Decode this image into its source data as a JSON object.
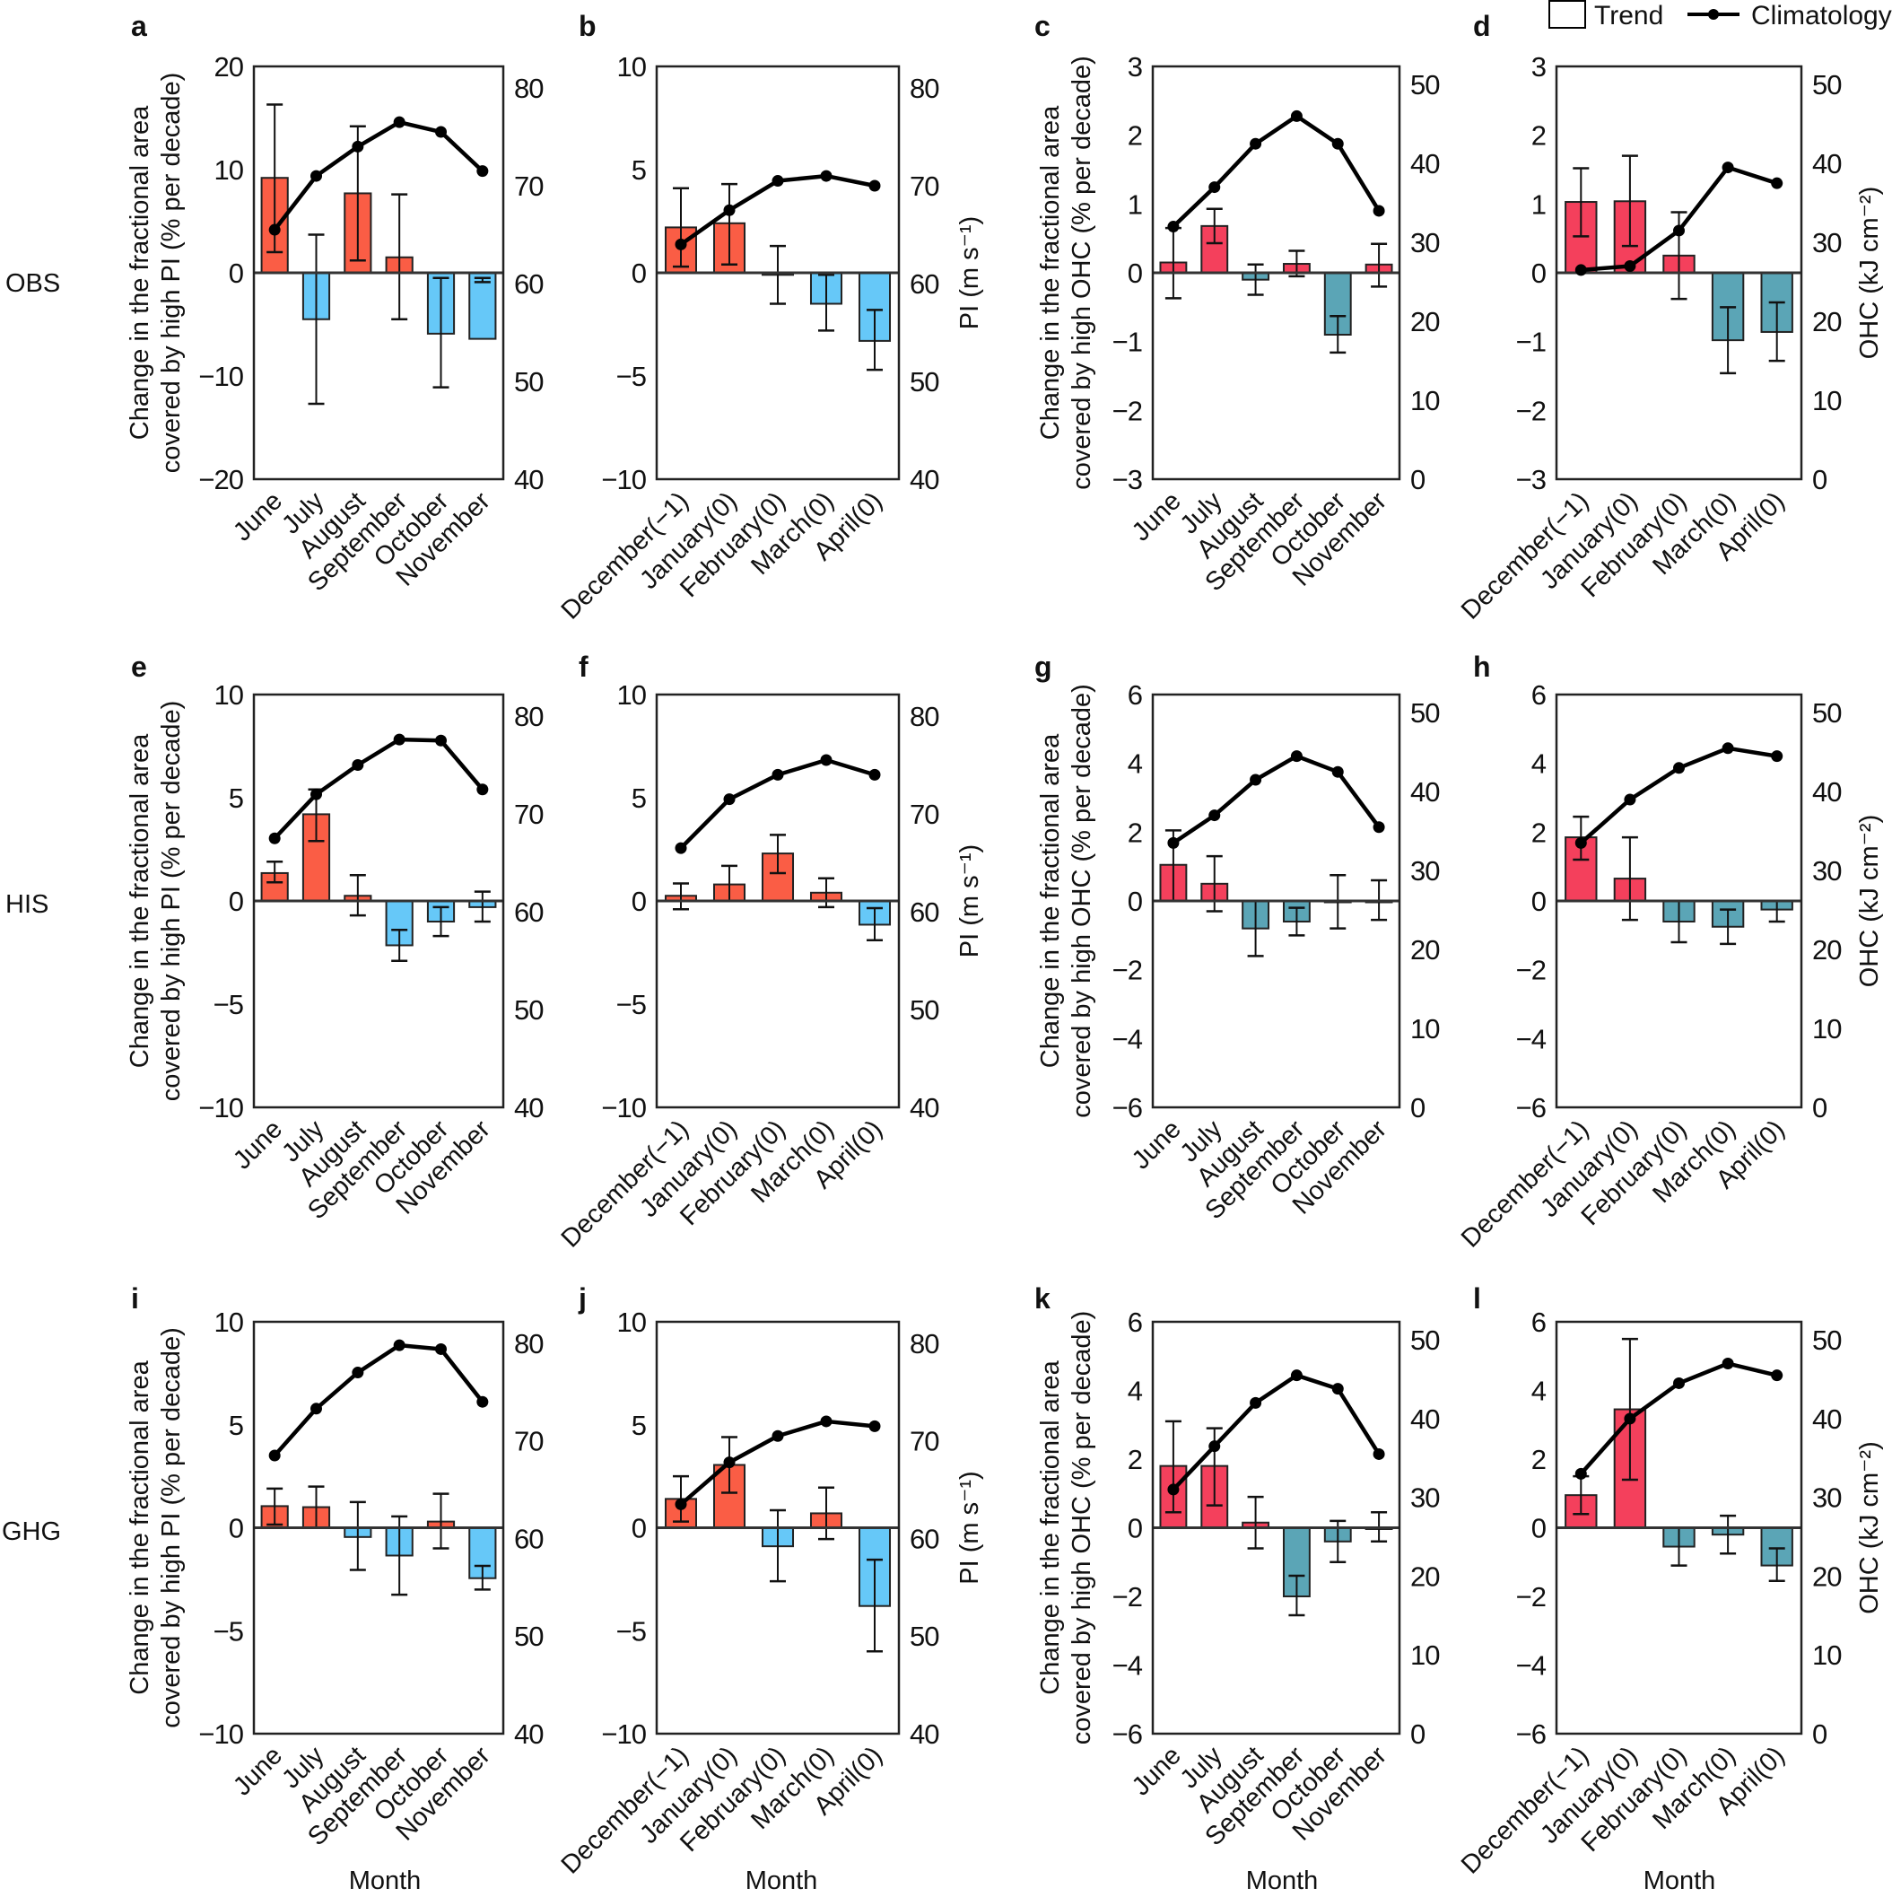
{
  "legend": {
    "trend_label": "Trend",
    "climatology_label": "Climatology"
  },
  "row_labels": [
    "OBS",
    "HIS",
    "GHG"
  ],
  "colors": {
    "pi_positive": "#fa5d45",
    "pi_negative": "#66c8f8",
    "ohc_positive": "#f4405c",
    "ohc_negative": "#5ba5b6",
    "climatology": "#000000"
  },
  "chart_data": [
    {
      "letter": "a",
      "type": "bar+line",
      "categories": [
        "June",
        "July",
        "August",
        "September",
        "October",
        "November"
      ],
      "trend": [
        9.2,
        -4.5,
        7.7,
        1.5,
        -5.9,
        -6.4
      ],
      "err_low": [
        2,
        -12.7,
        1.2,
        -4.5,
        -11.1,
        -0.5
      ],
      "err_high": [
        16.3,
        3.7,
        14.2,
        7.6,
        -0.5,
        -0.9
      ],
      "climatology": [
        65.5,
        71,
        74,
        76.5,
        75.5,
        71.5
      ],
      "variable": "PI",
      "ylim": [
        -20,
        20
      ],
      "yticks": [
        "−20",
        "−10",
        "0",
        "10",
        "20"
      ],
      "yticks_values": [
        -20,
        -10,
        0,
        10,
        20
      ],
      "y2lim": [
        40,
        82.2
      ],
      "y2ticks": [
        "40",
        "50",
        "60",
        "70",
        "80"
      ],
      "y2ticks_values": [
        40,
        50,
        60,
        70,
        80
      ],
      "ylabel": [
        "Change in the fractional area",
        "covered by high PI (% per decade)"
      ],
      "y2label": "",
      "xlabel": ""
    },
    {
      "letter": "b",
      "type": "bar+line",
      "categories": [
        "December(−1)",
        "January(0)",
        "February(0)",
        "March(0)",
        "April(0)"
      ],
      "trend": [
        2.2,
        2.4,
        -0.1,
        -1.5,
        -3.3
      ],
      "err_low": [
        0.3,
        0.4,
        -1.5,
        -2.8,
        -4.7
      ],
      "err_high": [
        4.1,
        4.3,
        1.3,
        -0.1,
        -1.8
      ],
      "climatology": [
        64,
        67.5,
        70.5,
        71,
        70
      ],
      "variable": "PI",
      "ylim": [
        -10,
        10
      ],
      "yticks": [
        "−10",
        "−5",
        "0",
        "5",
        "10"
      ],
      "yticks_values": [
        -10,
        -5,
        0,
        5,
        10
      ],
      "y2lim": [
        40,
        82.2
      ],
      "y2ticks": [
        "40",
        "50",
        "60",
        "70",
        "80"
      ],
      "y2ticks_values": [
        40,
        50,
        60,
        70,
        80
      ],
      "ylabel": [],
      "y2label": "PI (m s⁻¹)",
      "xlabel": ""
    },
    {
      "letter": "c",
      "type": "bar+line",
      "categories": [
        "June",
        "July",
        "August",
        "September",
        "October",
        "November"
      ],
      "trend": [
        0.15,
        0.68,
        -0.1,
        0.13,
        -0.9,
        0.12
      ],
      "err_low": [
        -0.37,
        0.43,
        -0.32,
        -0.05,
        -1.16,
        -0.2
      ],
      "err_high": [
        0.65,
        0.93,
        0.12,
        0.32,
        -0.63,
        0.42
      ],
      "climatology": [
        32,
        37,
        42.5,
        46,
        42.5,
        34
      ],
      "variable": "OHC",
      "ylim": [
        -3,
        3
      ],
      "yticks": [
        "−3",
        "−2",
        "−1",
        "0",
        "1",
        "2",
        "3"
      ],
      "yticks_values": [
        -3,
        -2,
        -1,
        0,
        1,
        2,
        3
      ],
      "y2lim": [
        0,
        52.3
      ],
      "y2ticks": [
        "0",
        "10",
        "20",
        "30",
        "40",
        "50"
      ],
      "y2ticks_values": [
        0,
        10,
        20,
        30,
        40,
        50
      ],
      "ylabel": [
        "Change in the fractional area",
        "covered by high OHC (% per decade)"
      ],
      "y2label": "",
      "xlabel": ""
    },
    {
      "letter": "d",
      "type": "bar+line",
      "categories": [
        "December(−1)",
        "January(0)",
        "February(0)",
        "March(0)",
        "April(0)"
      ],
      "trend": [
        1.03,
        1.04,
        0.25,
        -0.98,
        -0.86
      ],
      "err_low": [
        0.53,
        0.39,
        -0.38,
        -1.46,
        -1.28
      ],
      "err_high": [
        1.52,
        1.7,
        0.88,
        -0.5,
        -0.43
      ],
      "climatology": [
        26.5,
        27,
        31.5,
        39.5,
        37.5
      ],
      "variable": "OHC",
      "ylim": [
        -3,
        3
      ],
      "yticks": [
        "−3",
        "−2",
        "−1",
        "0",
        "1",
        "2",
        "3"
      ],
      "yticks_values": [
        -3,
        -2,
        -1,
        0,
        1,
        2,
        3
      ],
      "y2lim": [
        0,
        52.3
      ],
      "y2ticks": [
        "0",
        "10",
        "20",
        "30",
        "40",
        "50"
      ],
      "y2ticks_values": [
        0,
        10,
        20,
        30,
        40,
        50
      ],
      "ylabel": [],
      "y2label": "OHC (kJ cm⁻²)",
      "xlabel": ""
    },
    {
      "letter": "e",
      "type": "bar+line",
      "categories": [
        "June",
        "July",
        "August",
        "September",
        "October",
        "November"
      ],
      "trend": [
        1.35,
        4.2,
        0.25,
        -2.15,
        -1.0,
        -0.3
      ],
      "err_low": [
        0.9,
        2.9,
        -0.7,
        -2.9,
        -1.7,
        -1.0
      ],
      "err_high": [
        1.9,
        5.4,
        1.25,
        -1.4,
        -0.3,
        0.45
      ],
      "climatology": [
        67.5,
        72,
        75,
        77.6,
        77.5,
        72.5
      ],
      "variable": "PI",
      "ylim": [
        -10,
        10
      ],
      "yticks": [
        "−10",
        "−5",
        "0",
        "5",
        "10"
      ],
      "yticks_values": [
        -10,
        -5,
        0,
        5,
        10
      ],
      "y2lim": [
        40,
        82.2
      ],
      "y2ticks": [
        "40",
        "50",
        "60",
        "70",
        "80"
      ],
      "y2ticks_values": [
        40,
        50,
        60,
        70,
        80
      ],
      "ylabel": [
        "Change in the fractional area",
        "covered by high PI (% per decade)"
      ],
      "y2label": "",
      "xlabel": ""
    },
    {
      "letter": "f",
      "type": "bar+line",
      "categories": [
        "December(−1)",
        "January(0)",
        "February(0)",
        "March(0)",
        "April(0)"
      ],
      "trend": [
        0.25,
        0.8,
        2.3,
        0.4,
        -1.15
      ],
      "err_low": [
        -0.4,
        0,
        1.35,
        -0.3,
        -1.9
      ],
      "err_high": [
        0.85,
        1.7,
        3.2,
        1.1,
        -0.35
      ],
      "climatology": [
        66.5,
        71.5,
        74,
        75.5,
        74
      ],
      "variable": "PI",
      "ylim": [
        -10,
        10
      ],
      "yticks": [
        "−10",
        "−5",
        "0",
        "5",
        "10"
      ],
      "yticks_values": [
        -10,
        -5,
        0,
        5,
        10
      ],
      "y2lim": [
        40,
        82.2
      ],
      "y2ticks": [
        "40",
        "50",
        "60",
        "70",
        "80"
      ],
      "y2ticks_values": [
        40,
        50,
        60,
        70,
        80
      ],
      "ylabel": [],
      "y2label": "PI (m s⁻¹)",
      "xlabel": ""
    },
    {
      "letter": "g",
      "type": "bar+line",
      "categories": [
        "June",
        "July",
        "August",
        "September",
        "October",
        "November"
      ],
      "trend": [
        1.05,
        0.5,
        -0.8,
        -0.6,
        0,
        0
      ],
      "err_low": [
        0,
        -0.3,
        -1.6,
        -1.0,
        -0.8,
        -0.55
      ],
      "err_high": [
        2.05,
        1.3,
        0,
        -0.2,
        0.75,
        0.6
      ],
      "climatology": [
        33.5,
        37,
        41.5,
        44.5,
        42.5,
        35.5
      ],
      "variable": "OHC",
      "ylim": [
        -6,
        6
      ],
      "yticks": [
        "−6",
        "−4",
        "−2",
        "0",
        "2",
        "4",
        "6"
      ],
      "yticks_values": [
        -6,
        -4,
        -2,
        0,
        2,
        4,
        6
      ],
      "y2lim": [
        0,
        52.3
      ],
      "y2ticks": [
        "0",
        "10",
        "20",
        "30",
        "40",
        "50"
      ],
      "y2ticks_values": [
        0,
        10,
        20,
        30,
        40,
        50
      ],
      "ylabel": [
        "Change in the fractional area",
        "covered by high OHC (% per decade)"
      ],
      "y2label": "",
      "xlabel": ""
    },
    {
      "letter": "h",
      "type": "bar+line",
      "categories": [
        "December(−1)",
        "January(0)",
        "February(0)",
        "March(0)",
        "April(0)"
      ],
      "trend": [
        1.85,
        0.65,
        -0.6,
        -0.75,
        -0.25
      ],
      "err_low": [
        1.2,
        -0.55,
        -1.2,
        -1.25,
        -0.6
      ],
      "err_high": [
        2.45,
        1.85,
        0,
        -0.25,
        0
      ],
      "climatology": [
        33.5,
        39,
        43,
        45.5,
        44.5
      ],
      "variable": "OHC",
      "ylim": [
        -6,
        6
      ],
      "yticks": [
        "−6",
        "−4",
        "−2",
        "0",
        "2",
        "4",
        "6"
      ],
      "yticks_values": [
        -6,
        -4,
        -2,
        0,
        2,
        4,
        6
      ],
      "y2lim": [
        0,
        52.3
      ],
      "y2ticks": [
        "0",
        "10",
        "20",
        "30",
        "40",
        "50"
      ],
      "y2ticks_values": [
        0,
        10,
        20,
        30,
        40,
        50
      ],
      "ylabel": [],
      "y2label": "OHC (kJ cm⁻²)",
      "xlabel": ""
    },
    {
      "letter": "i",
      "type": "bar+line",
      "categories": [
        "June",
        "July",
        "August",
        "September",
        "October",
        "November"
      ],
      "trend": [
        1.05,
        1.0,
        -0.45,
        -1.35,
        0.3,
        -2.45
      ],
      "err_low": [
        0.15,
        0,
        -2.05,
        -3.25,
        -1.0,
        -3.0
      ],
      "err_high": [
        1.9,
        2.0,
        1.25,
        0.55,
        1.65,
        -1.85
      ],
      "climatology": [
        68.5,
        73.3,
        77,
        79.8,
        79.4,
        74
      ],
      "variable": "PI",
      "ylim": [
        -10,
        10
      ],
      "yticks": [
        "−10",
        "−5",
        "0",
        "5",
        "10"
      ],
      "yticks_values": [
        -10,
        -5,
        0,
        5,
        10
      ],
      "y2lim": [
        40,
        82.2
      ],
      "y2ticks": [
        "40",
        "50",
        "60",
        "70",
        "80"
      ],
      "y2ticks_values": [
        40,
        50,
        60,
        70,
        80
      ],
      "ylabel": [
        "Change in the fractional area",
        "covered by high PI (% per decade)"
      ],
      "y2label": "",
      "xlabel": "Month"
    },
    {
      "letter": "j",
      "type": "bar+line",
      "categories": [
        "December(−1)",
        "January(0)",
        "February(0)",
        "March(0)",
        "April(0)"
      ],
      "trend": [
        1.4,
        3.05,
        -0.9,
        0.7,
        -3.8
      ],
      "err_low": [
        0.3,
        1.7,
        -2.6,
        -0.55,
        -6.0
      ],
      "err_high": [
        2.5,
        4.4,
        0.85,
        1.95,
        -1.55
      ],
      "climatology": [
        63.5,
        67.8,
        70.5,
        72,
        71.5
      ],
      "variable": "PI",
      "ylim": [
        -10,
        10
      ],
      "yticks": [
        "−10",
        "−5",
        "0",
        "5",
        "10"
      ],
      "yticks_values": [
        -10,
        -5,
        0,
        5,
        10
      ],
      "y2lim": [
        40,
        82.2
      ],
      "y2ticks": [
        "40",
        "50",
        "60",
        "70",
        "80"
      ],
      "y2ticks_values": [
        40,
        50,
        60,
        70,
        80
      ],
      "ylabel": [],
      "y2label": "PI (m s⁻¹)",
      "xlabel": "Month"
    },
    {
      "letter": "k",
      "type": "bar+line",
      "categories": [
        "June",
        "July",
        "August",
        "September",
        "October",
        "November"
      ],
      "trend": [
        1.8,
        1.8,
        0.15,
        -2.0,
        -0.4,
        0
      ],
      "err_low": [
        0.45,
        0.65,
        -0.6,
        -2.55,
        -1.0,
        -0.4
      ],
      "err_high": [
        3.1,
        2.9,
        0.9,
        -1.4,
        0.2,
        0.45
      ],
      "climatology": [
        31,
        36.5,
        42,
        45.5,
        43.8,
        35.5
      ],
      "variable": "OHC",
      "ylim": [
        -6,
        6
      ],
      "yticks": [
        "−6",
        "−4",
        "−2",
        "0",
        "2",
        "4",
        "6"
      ],
      "yticks_values": [
        -6,
        -4,
        -2,
        0,
        2,
        4,
        6
      ],
      "y2lim": [
        0,
        52.3
      ],
      "y2ticks": [
        "0",
        "10",
        "20",
        "30",
        "40",
        "50"
      ],
      "y2ticks_values": [
        0,
        10,
        20,
        30,
        40,
        50
      ],
      "ylabel": [
        "Change in the fractional area",
        "covered by high OHC (% per decade)"
      ],
      "y2label": "",
      "xlabel": "Month"
    },
    {
      "letter": "l",
      "type": "bar+line",
      "categories": [
        "December(−1)",
        "January(0)",
        "February(0)",
        "March(0)",
        "April(0)"
      ],
      "trend": [
        0.95,
        3.45,
        -0.55,
        -0.2,
        -1.1
      ],
      "err_low": [
        0.4,
        1.4,
        -1.1,
        -0.75,
        -1.55
      ],
      "err_high": [
        1.5,
        5.5,
        0,
        0.35,
        -0.6
      ],
      "climatology": [
        33,
        40,
        44.5,
        47,
        45.5
      ],
      "variable": "OHC",
      "ylim": [
        -6,
        6
      ],
      "yticks": [
        "−6",
        "−4",
        "−2",
        "0",
        "2",
        "4",
        "6"
      ],
      "yticks_values": [
        -6,
        -4,
        -2,
        0,
        2,
        4,
        6
      ],
      "y2lim": [
        0,
        52.3
      ],
      "y2ticks": [
        "0",
        "10",
        "20",
        "30",
        "40",
        "50"
      ],
      "y2ticks_values": [
        0,
        10,
        20,
        30,
        40,
        50
      ],
      "ylabel": [],
      "y2label": "OHC (kJ cm⁻²)",
      "xlabel": "Month"
    }
  ]
}
